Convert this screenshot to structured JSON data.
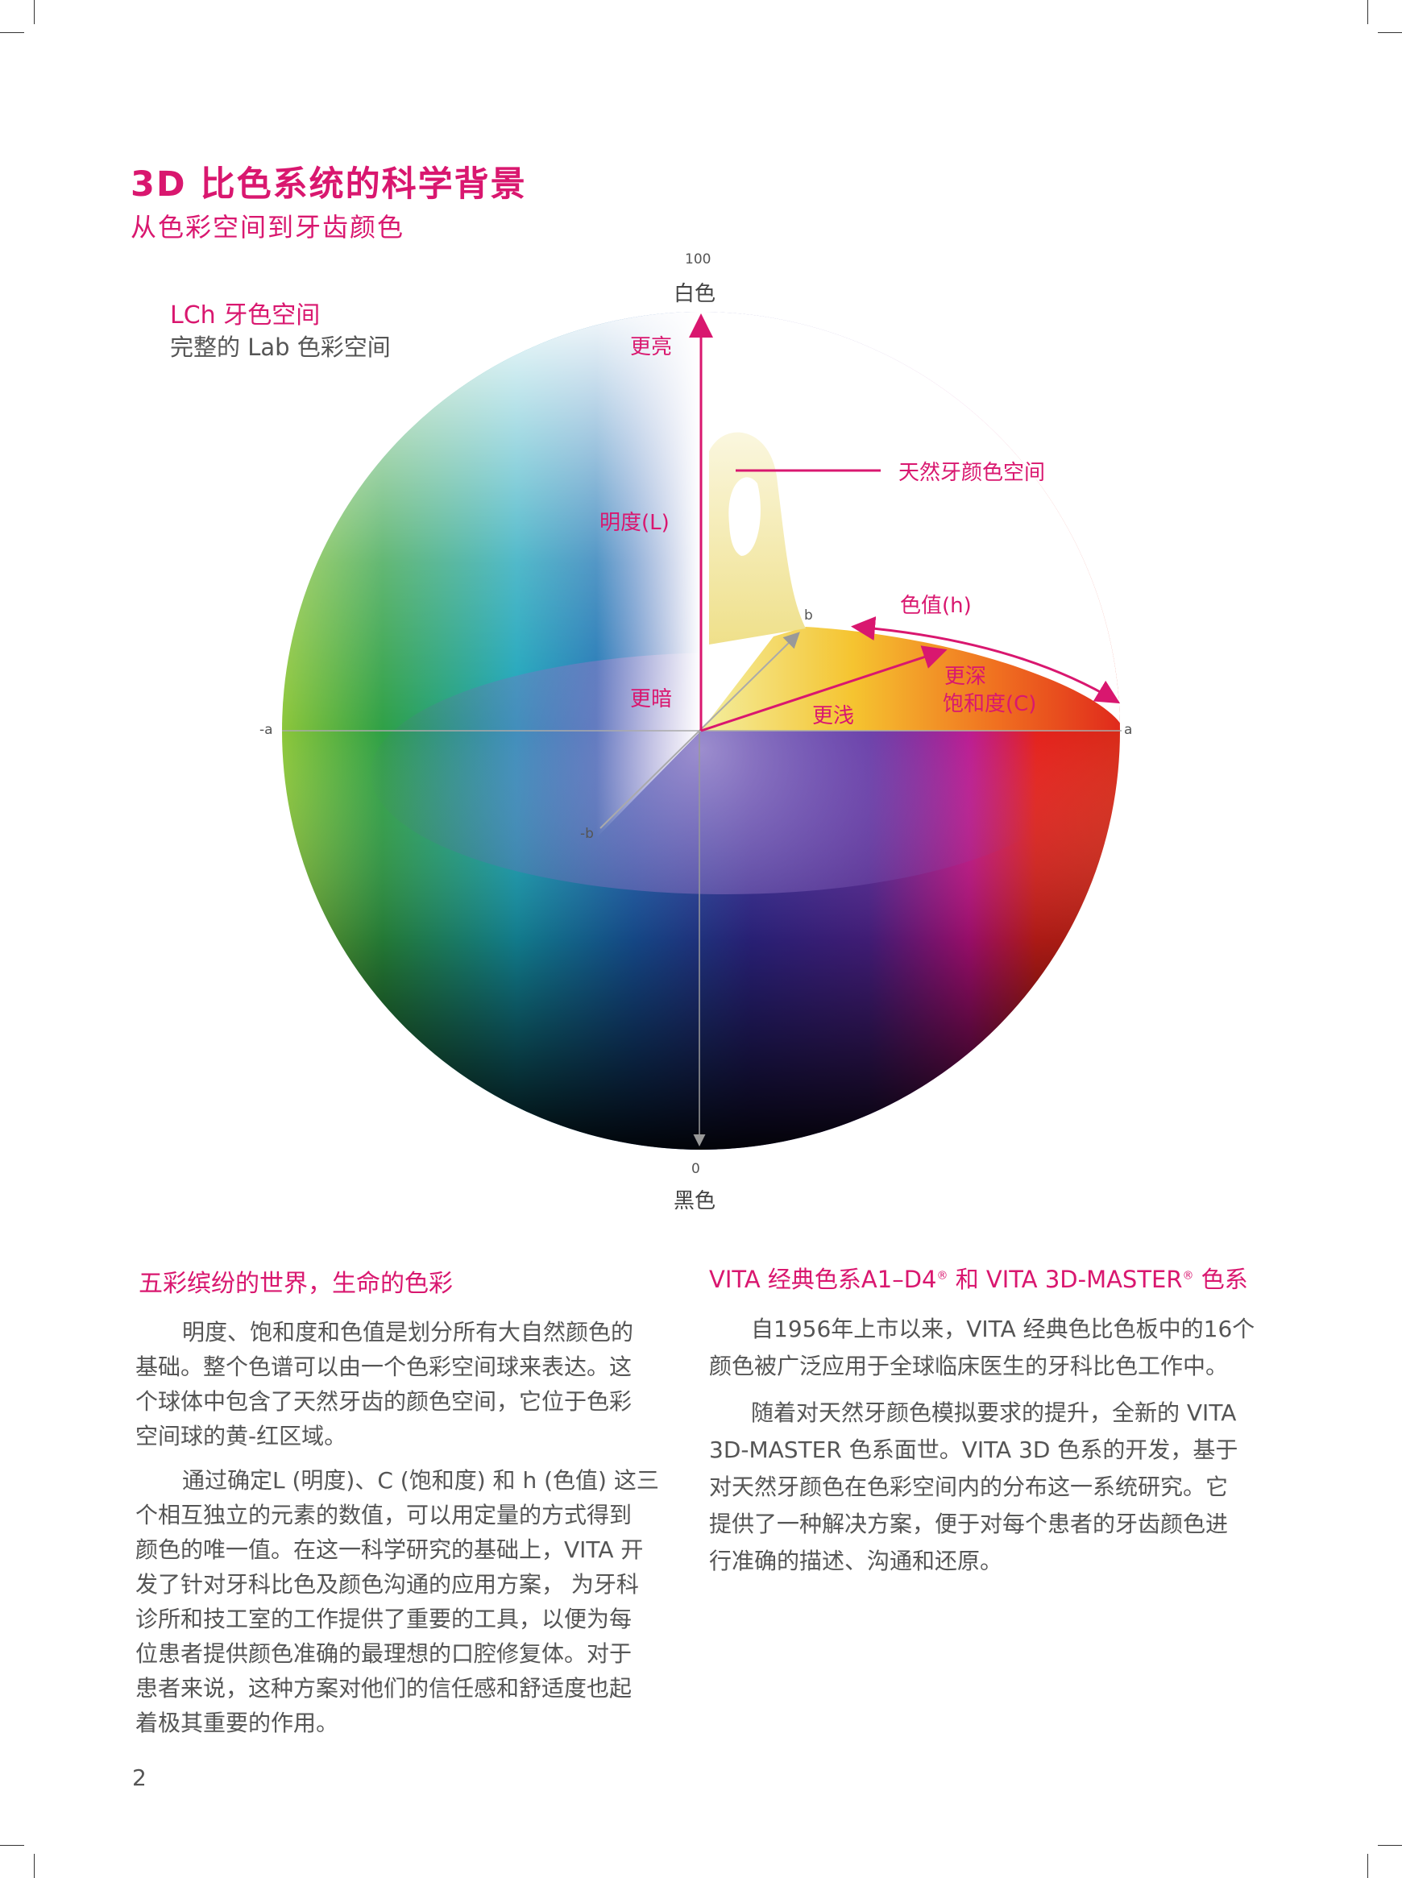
{
  "header": {
    "title": "3D 比色系统的科学背景",
    "subtitle": "从色彩空间到牙齿颜色"
  },
  "diagram": {
    "legend_title": "LCh 牙色空间",
    "legend_subtitle": "完整的 Lab 色彩空间",
    "axis_top_value": "100",
    "axis_top_label": "白色",
    "axis_bottom_value": "0",
    "axis_bottom_label": "黑色",
    "axis_neg_a": "-a",
    "axis_a": "a",
    "axis_b": "b",
    "axis_neg_b": "-b",
    "brighter": "更亮",
    "darker": "更暗",
    "lightness": "明度(L)",
    "natural_tooth_space": "天然牙颜色空间",
    "hue": "色值(h)",
    "deeper": "更深",
    "chroma": "饱和度(C)",
    "lighter": "更浅",
    "accent_color": "#d9176f"
  },
  "left_column": {
    "heading": "五彩缤纷的世界，生命的色彩",
    "paragraphs": [
      [
        "明度、饱和度和色值是划分所有大自然颜色的",
        "基础。整个色谱可以由一个色彩空间球来表达。这",
        "个球体中包含了天然牙齿的颜色空间，它位于色彩",
        "空间球的黄-红区域。"
      ],
      [
        "通过确定L (明度)、C (饱和度) 和 h (色值) 这三",
        "个相互独立的元素的数值，可以用定量的方式得到",
        "颜色的唯一值。在这一科学研究的基础上，VITA 开",
        "发了针对牙科比色及颜色沟通的应用方案， 为牙科",
        "诊所和技工室的工作提供了重要的工具，以便为每",
        "位患者提供颜色准确的最理想的口腔修复体。对于",
        "患者来说，这种方案对他们的信任感和舒适度也起",
        "着极其重要的作用。"
      ]
    ]
  },
  "right_column": {
    "heading_part1": "VITA 经典色系A1–D4",
    "heading_reg1": "®",
    "heading_part2": " 和 VITA 3D-MASTER",
    "heading_reg2": "®",
    "heading_part3": " 色系",
    "paragraphs": [
      [
        "自1956年上市以来，VITA 经典色比色板中的16个",
        "颜色被广泛应用于全球临床医生的牙科比色工作中。"
      ],
      [
        "随着对天然牙颜色模拟要求的提升，全新的 VITA",
        "3D-MASTER 色系面世。VITA 3D 色系的开发，基于",
        "对天然牙颜色在色彩空间内的分布这一系统研究。它",
        "提供了一种解决方案，便于对每个患者的牙齿颜色进",
        "行准确的描述、沟通和还原。"
      ]
    ]
  },
  "footer": {
    "page_number": "2"
  }
}
